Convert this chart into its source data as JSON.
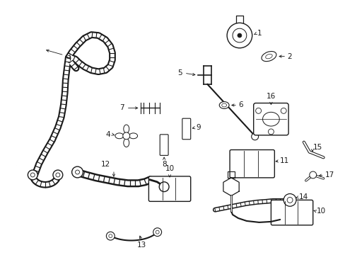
{
  "bg_color": "#ffffff",
  "line_color": "#1a1a1a",
  "fig_width": 4.89,
  "fig_height": 3.6,
  "dpi": 100,
  "label_fs": 7.5,
  "lw_hose": 1.2,
  "lw_thin": 0.7
}
